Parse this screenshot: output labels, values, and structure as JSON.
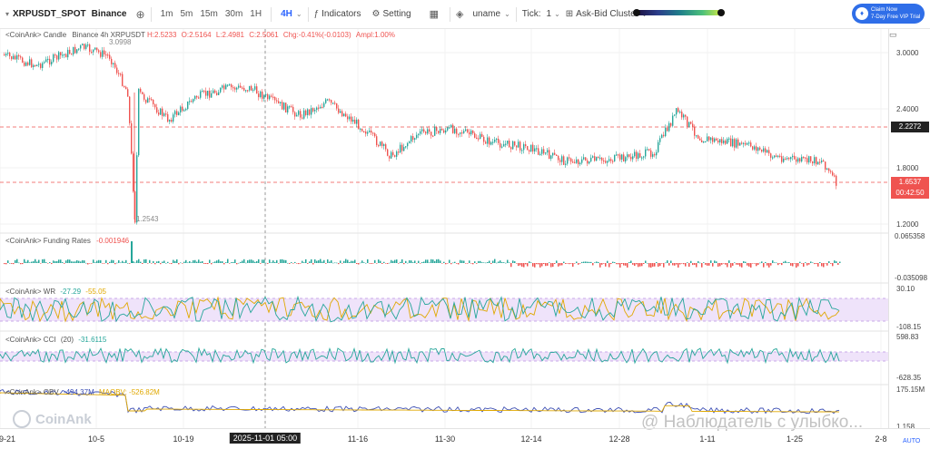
{
  "toolbar": {
    "symbol": "XRPUSDT_SPOT",
    "exchange": "Binance",
    "intervals": [
      "1m",
      "5m",
      "15m",
      "30m",
      "1H",
      "4H"
    ],
    "active_interval": "4H",
    "indicators_label": "Indicators",
    "setting_label": "Setting",
    "uname_label": "uname",
    "tick_label": "Tick:",
    "tick_value": "1",
    "cluster_label": "Ask-Bid Cluster",
    "claim_line1": "Claim Now",
    "claim_line2": "7-Day Free VIP Trial"
  },
  "main_legend": {
    "prefix": "<CoinAnk> Candle",
    "source": "Binance 4h XRPUSDT",
    "h": "H:2.5233",
    "o": "O:2.5164",
    "l": "L:2.4981",
    "c": "C:2.5061",
    "chg": "Chg:-0.41%(-0.0103)",
    "ampl": "Ampl:1.00%"
  },
  "price_axis": [
    "3.0000",
    "2.4000",
    "1.8000",
    "1.2000"
  ],
  "price_markers": {
    "hline": "2.2272",
    "last": "1.6537",
    "countdown": "00:42:50",
    "high_mark": "3.0998",
    "low_mark": "1.2543"
  },
  "funding": {
    "label": "<CoinAnk> Funding Rates",
    "value": "-0.001946",
    "top": "0.065358",
    "bottom": "-0.035098"
  },
  "wr": {
    "label": "<CoinAnk> WR",
    "v1": "-27.29",
    "v2": "-55.05",
    "top": "30.10",
    "bottom": "-108.15"
  },
  "cci": {
    "label": "<CoinAnk> CCI",
    "period": "(20)",
    "value": "-31.6115",
    "top": "598.83",
    "bottom": "-628.35"
  },
  "obv": {
    "label": "<CoinAnk> OBV",
    "value": "-494.37M",
    "ma_label": "MAOBV:",
    "ma_value": "-526.82M",
    "top": "175.15M",
    "bottom": "1.158"
  },
  "auto_label": "AUTO",
  "x_axis": [
    {
      "label": "9-21",
      "x": 0
    },
    {
      "label": "10-5",
      "x": 106
    },
    {
      "label": "10-19",
      "x": 202
    },
    {
      "label": "2025-11-01 05:00",
      "x": 292
    },
    {
      "label": "11-16",
      "x": 394
    },
    {
      "label": "11-30",
      "x": 490
    },
    {
      "label": "12-14",
      "x": 585
    },
    {
      "label": "12-28",
      "x": 682
    },
    {
      "label": "1-11",
      "x": 779
    },
    {
      "label": "1-25",
      "x": 875
    },
    {
      "label": "2-8",
      "x": 970
    }
  ],
  "watermark": "CoinAnk",
  "social_watermark": "@ Наблюдатель с улыбко..."
}
